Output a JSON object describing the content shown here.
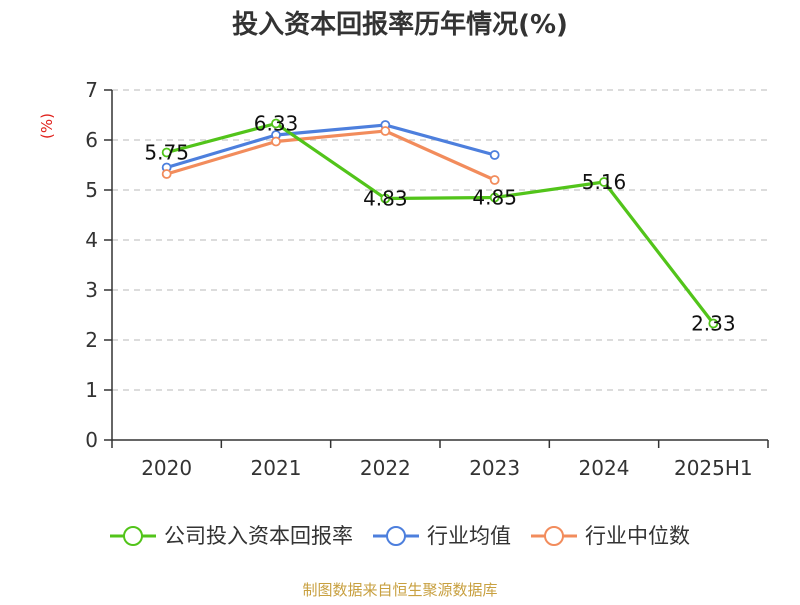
{
  "chart_data": {
    "type": "line",
    "title": "投入资本回报率历年情况(%)",
    "ylabel": "(%)",
    "xlabel": "",
    "categories": [
      "2020",
      "2021",
      "2022",
      "2023",
      "2024",
      "2025H1"
    ],
    "ylim": [
      0,
      7
    ],
    "yticks": [
      "0",
      "1",
      "2",
      "3",
      "4",
      "5",
      "6",
      "7"
    ],
    "grid": true,
    "legend_position": "bottom",
    "series": [
      {
        "name": "公司投入资本回报率",
        "color": "#52c41a",
        "values": [
          5.75,
          6.33,
          4.83,
          4.85,
          5.16,
          2.33
        ],
        "labels": [
          "5.75",
          "6.33",
          "4.83",
          "4.85",
          "5.16",
          "2.33"
        ]
      },
      {
        "name": "行业均值",
        "color": "#4d7fdd",
        "values": [
          5.45,
          6.1,
          6.3,
          5.7,
          null,
          null
        ]
      },
      {
        "name": "行业中位数",
        "color": "#f28c5c",
        "values": [
          5.32,
          5.97,
          6.18,
          5.2,
          null,
          null
        ]
      }
    ]
  },
  "source": "制图数据来自恒生聚源数据库"
}
